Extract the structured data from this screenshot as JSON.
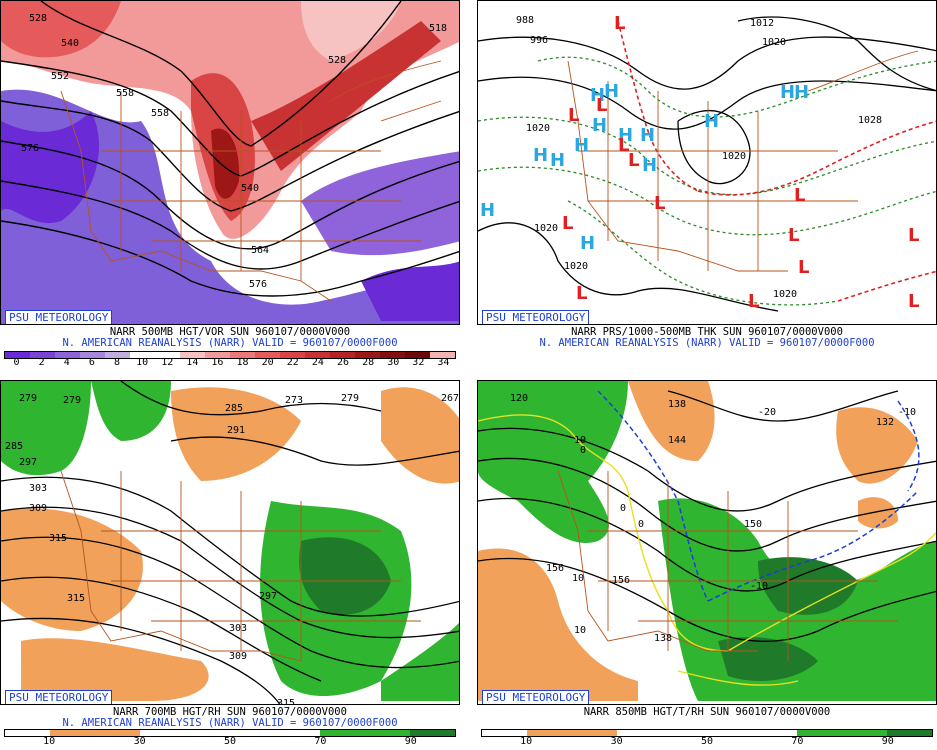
{
  "badge": "PSU METEOROLOGY",
  "panels": {
    "vor": {
      "caption1": "NARR 500MB HGT/VOR SUN 960107/0000V000",
      "caption2": "N. AMERICAN REANALYSIS (NARR) VALID = 960107/0000F000",
      "colorbar_labels": [
        "0",
        "2",
        "4",
        "6",
        "8",
        "10",
        "12",
        "14",
        "16",
        "18",
        "20",
        "22",
        "24",
        "26",
        "28",
        "30",
        "32",
        "34"
      ],
      "colorbar_colors": [
        "#6a2ad6",
        "#7b43d8",
        "#8f63d9",
        "#a787db",
        "#c1aee0",
        "#ffffff",
        "#ffffff",
        "#f7c2c2",
        "#f29a9a",
        "#ec7878",
        "#e55a5a",
        "#d94444",
        "#c93232",
        "#b52424",
        "#9e1717",
        "#860d0d",
        "#6e0707",
        "#f2b3b3"
      ],
      "contour_labels": [
        "528",
        "540",
        "552",
        "576",
        "558",
        "528",
        "528",
        "564",
        "576",
        "540",
        "558",
        "576",
        "564",
        "518"
      ]
    },
    "prs": {
      "caption1": "NARR PRS/1000-500MB THK SUN 960107/0000V000",
      "caption2": "N. AMERICAN REANALYSIS (NARR) VALID = 960107/0000F000",
      "contour_labels": [
        "988",
        "996",
        "1012",
        "1020",
        "1020",
        "1020",
        "1028",
        "1020",
        "1020",
        "1020"
      ],
      "highs": "H",
      "lows": "L"
    },
    "rh700": {
      "caption1": "NARR 700MB HGT/RH SUN 960107/0000V000",
      "caption2": "N. AMERICAN REANALYSIS (NARR) VALID = 960107/0000F000",
      "colorbar_labels": [
        "10",
        "30",
        "50",
        "70",
        "90"
      ],
      "contour_labels": [
        "279",
        "279",
        "285",
        "285",
        "291",
        "297",
        "303",
        "309",
        "315",
        "315",
        "297",
        "303",
        "309",
        "315",
        "273",
        "267",
        "279"
      ]
    },
    "t850": {
      "caption1": "NARR 850MB HGT/T/RH SUN 960107/0000V000",
      "colorbar_labels": [
        "10",
        "30",
        "50",
        "70",
        "90"
      ],
      "contour_labels": [
        "120",
        "138",
        "144",
        "150",
        "156",
        "156",
        "138",
        "132",
        "-10",
        "-10",
        "-20",
        "10",
        "10",
        "10",
        "0",
        "0",
        "0"
      ]
    }
  },
  "colors": {
    "border": "#b5541d",
    "blue_text": "#1d3fd6",
    "high": "#2aa7e0",
    "low": "#e02020",
    "green": "#2fb52f",
    "dark_green": "#1f7a2a",
    "orange": "#f2a15a"
  }
}
